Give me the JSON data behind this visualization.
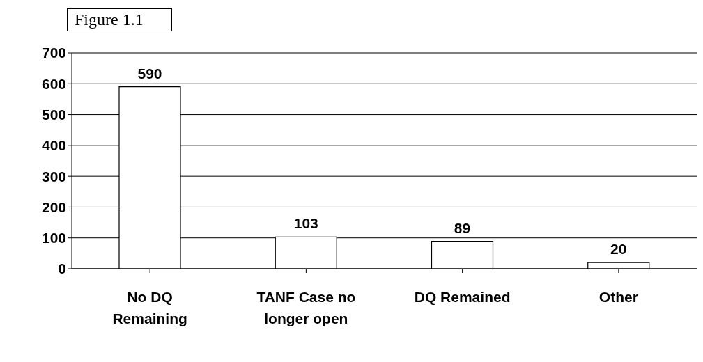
{
  "chart_data": {
    "type": "bar",
    "title": "Figure 1.1",
    "categories": [
      "No DQ Remaining",
      "TANF Case no longer open",
      "DQ Remained",
      "Other"
    ],
    "values": [
      590,
      103,
      89,
      20
    ],
    "color": "#ffffff",
    "ylim": [
      0,
      700
    ],
    "yticks": [
      0,
      100,
      200,
      300,
      400,
      500,
      600,
      700
    ],
    "grid": "y",
    "data_labels": true
  }
}
